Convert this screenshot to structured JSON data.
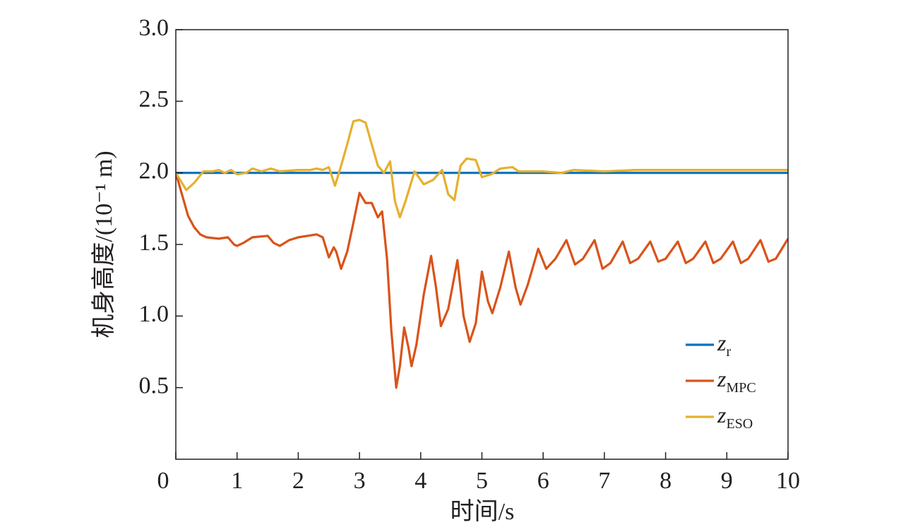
{
  "chart_data": {
    "type": "line",
    "xlabel": "时间/s",
    "ylabel": "机身高度/(10⁻¹ m)",
    "xlim": [
      0,
      10
    ],
    "xticks": [
      0,
      1,
      2,
      3,
      4,
      5,
      6,
      7,
      8,
      9,
      10
    ],
    "ylim": [
      0,
      3
    ],
    "yticks": [
      0.5,
      {
        "value": 1,
        "label": "1.0"
      },
      1.5,
      {
        "value": 2,
        "label": "2.0"
      },
      2.5,
      {
        "value": 3,
        "label": "3.0"
      }
    ],
    "grid": false,
    "legend": "lower right",
    "series": [
      {
        "name": "z",
        "subscript": "r",
        "color": "#0072bd",
        "x": [
          0,
          10
        ],
        "values": [
          2,
          2
        ]
      },
      {
        "name": "z",
        "subscript": "MPC",
        "color": "#d95319",
        "x": [
          0,
          0.1,
          0.2,
          0.3,
          0.4,
          0.5,
          0.7,
          0.85,
          0.95,
          1.0,
          1.1,
          1.25,
          1.5,
          1.6,
          1.7,
          1.85,
          2.0,
          2.3,
          2.4,
          2.5,
          2.58,
          2.62,
          2.7,
          2.8,
          2.9,
          3.0,
          3.1,
          3.2,
          3.3,
          3.37,
          3.45,
          3.52,
          3.6,
          3.66,
          3.73,
          3.8,
          3.85,
          3.93,
          4.05,
          4.17,
          4.25,
          4.33,
          4.45,
          4.6,
          4.7,
          4.8,
          4.9,
          5.0,
          5.1,
          5.17,
          5.3,
          5.44,
          5.55,
          5.63,
          5.75,
          5.92,
          6.05,
          6.2,
          6.38,
          6.52,
          6.65,
          6.84,
          6.97,
          7.1,
          7.3,
          7.42,
          7.55,
          7.75,
          7.88,
          8.0,
          8.2,
          8.33,
          8.45,
          8.65,
          8.78,
          8.9,
          9.1,
          9.23,
          9.35,
          9.55,
          9.68,
          9.8,
          10
        ],
        "values": [
          2.0,
          1.85,
          1.7,
          1.62,
          1.57,
          1.55,
          1.54,
          1.55,
          1.5,
          1.49,
          1.51,
          1.55,
          1.56,
          1.51,
          1.49,
          1.53,
          1.55,
          1.57,
          1.55,
          1.41,
          1.48,
          1.45,
          1.33,
          1.45,
          1.65,
          1.86,
          1.79,
          1.79,
          1.69,
          1.73,
          1.4,
          0.9,
          0.5,
          0.65,
          0.92,
          0.78,
          0.65,
          0.8,
          1.15,
          1.42,
          1.2,
          0.93,
          1.05,
          1.39,
          1.0,
          0.82,
          0.95,
          1.31,
          1.1,
          1.02,
          1.2,
          1.45,
          1.2,
          1.08,
          1.22,
          1.47,
          1.33,
          1.4,
          1.53,
          1.36,
          1.4,
          1.53,
          1.33,
          1.37,
          1.52,
          1.37,
          1.4,
          1.52,
          1.38,
          1.4,
          1.52,
          1.37,
          1.4,
          1.52,
          1.37,
          1.4,
          1.52,
          1.37,
          1.4,
          1.53,
          1.38,
          1.4,
          1.54
        ]
      },
      {
        "name": "z",
        "subscript": "ESO",
        "color": "#e6b02e",
        "x": [
          0,
          0.1,
          0.17,
          0.3,
          0.45,
          0.6,
          0.7,
          0.8,
          0.9,
          1.0,
          1.15,
          1.25,
          1.4,
          1.55,
          1.7,
          2.0,
          2.2,
          2.3,
          2.4,
          2.5,
          2.6,
          2.7,
          2.8,
          2.9,
          3.0,
          3.1,
          3.2,
          3.3,
          3.4,
          3.5,
          3.58,
          3.66,
          3.75,
          3.9,
          4.05,
          4.2,
          4.35,
          4.45,
          4.55,
          4.65,
          4.75,
          4.9,
          5.0,
          5.15,
          5.3,
          5.5,
          5.6,
          6.0,
          6.3,
          6.5,
          7.0,
          7.5,
          8.0,
          8.5,
          9.0,
          9.5,
          10
        ],
        "values": [
          2.0,
          1.93,
          1.88,
          1.93,
          2.01,
          2.01,
          2.02,
          2.0,
          2.02,
          1.99,
          2.0,
          2.03,
          2.01,
          2.03,
          2.01,
          2.02,
          2.02,
          2.03,
          2.02,
          2.04,
          1.91,
          2.05,
          2.2,
          2.36,
          2.37,
          2.35,
          2.2,
          2.05,
          2.0,
          2.08,
          1.8,
          1.69,
          1.8,
          2.01,
          1.92,
          1.95,
          2.02,
          1.85,
          1.81,
          2.05,
          2.1,
          2.09,
          1.97,
          1.99,
          2.03,
          2.04,
          2.01,
          2.01,
          2.0,
          2.02,
          2.01,
          2.02,
          2.02,
          2.02,
          2.02,
          2.02,
          2.02
        ]
      }
    ]
  }
}
